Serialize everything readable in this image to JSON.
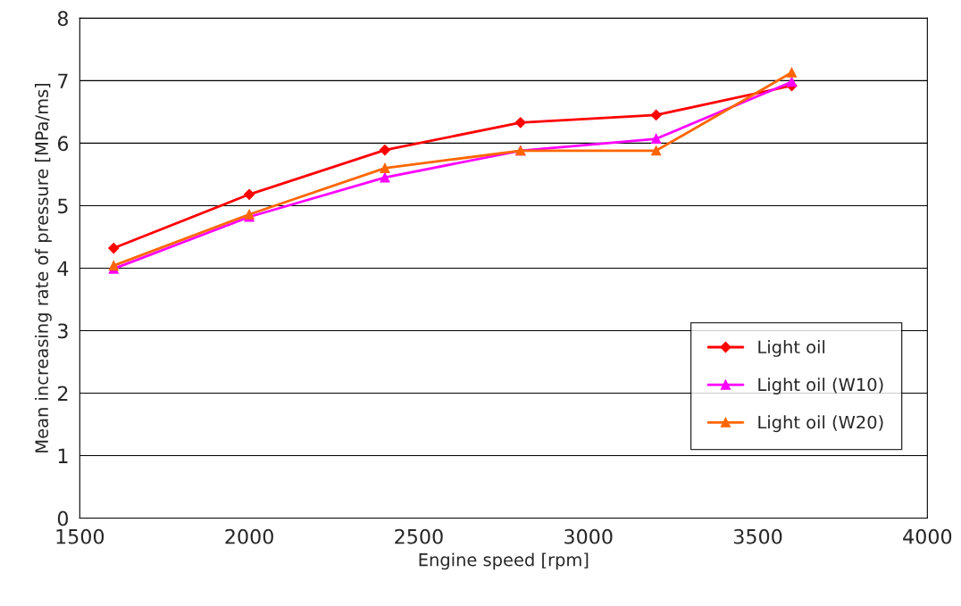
{
  "chart_data": {
    "type": "line",
    "xlabel": "Engine speed [rpm]",
    "ylabel": "Mean increasing rate of pressure [MPa/ms]",
    "x": [
      1600,
      2000,
      2400,
      2800,
      3200,
      3600
    ],
    "series": [
      {
        "name": "Light oil",
        "color": "#ff0000",
        "marker": "diamond",
        "values": [
          4.32,
          5.18,
          5.89,
          6.33,
          6.45,
          6.92
        ]
      },
      {
        "name": "Light oil (W10)",
        "color": "#ff00ff",
        "marker": "triangle",
        "values": [
          3.99,
          4.82,
          5.45,
          5.88,
          6.07,
          6.98
        ]
      },
      {
        "name": "Light oil (W20)",
        "color": "#ff6600",
        "marker": "triangle",
        "values": [
          4.04,
          4.86,
          5.6,
          5.88,
          5.88,
          7.13
        ]
      }
    ],
    "xlim": [
      1500,
      4000
    ],
    "xticks": [
      1500,
      2000,
      2500,
      3000,
      3500,
      4000
    ],
    "ylim": [
      0,
      8
    ],
    "yticks": [
      0,
      1,
      2,
      3,
      4,
      5,
      6,
      7,
      8
    ],
    "grid": "y",
    "legend": "bottom right",
    "line_style": "solid"
  }
}
